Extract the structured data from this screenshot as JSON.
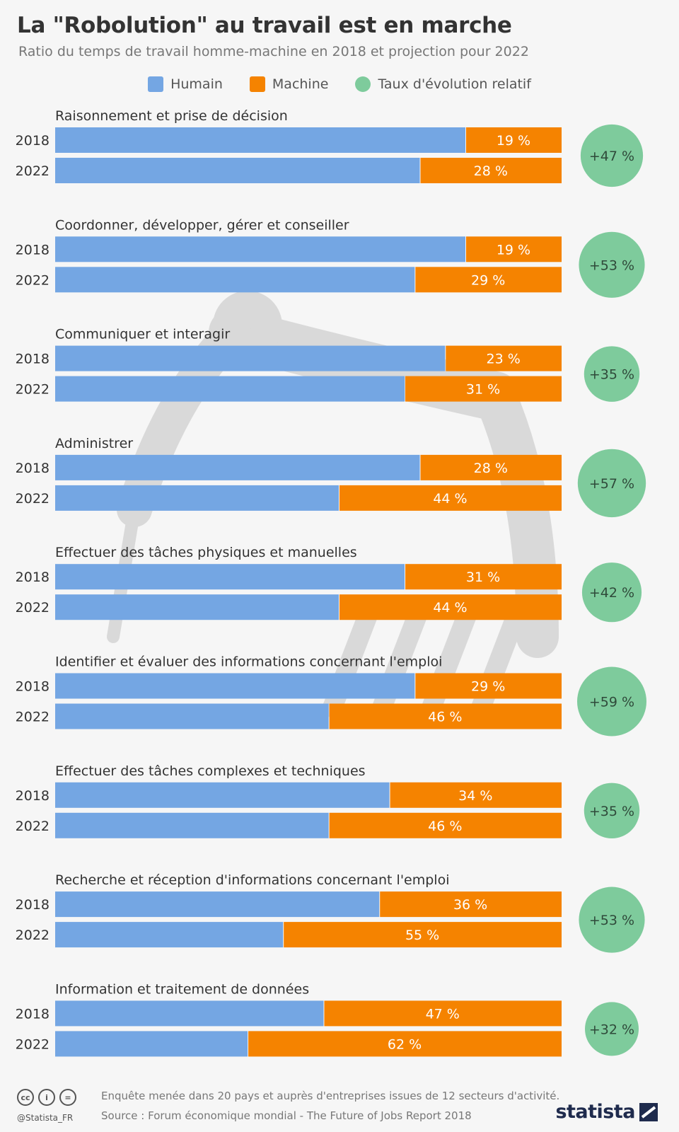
{
  "title": "La \"Robolution\" au travail est en marche",
  "subtitle": "Ratio du temps de travail homme-machine en 2018 et projection pour 2022",
  "legend": [
    {
      "label": "Humain",
      "color": "#74a6e3",
      "shape": "square"
    },
    {
      "label": "Machine",
      "color": "#f58300",
      "shape": "square"
    },
    {
      "label": "Taux d'évolution relatif",
      "color": "#7ecb9c",
      "shape": "circle"
    }
  ],
  "chart_data": {
    "type": "bar",
    "orientation": "horizontal",
    "stacked": true,
    "unit": "%",
    "xlim": [
      0,
      100
    ],
    "years": [
      "2018",
      "2022"
    ],
    "series": [
      {
        "name": "Humain",
        "color": "#74a6e3"
      },
      {
        "name": "Machine",
        "color": "#f58300"
      }
    ],
    "groups": [
      {
        "label": "Raisonnement et prise de décision",
        "machine": [
          19,
          28
        ],
        "growth": "+47 %"
      },
      {
        "label": "Coordonner, développer, gérer et conseiller",
        "machine": [
          19,
          29
        ],
        "growth": "+53 %"
      },
      {
        "label": "Communiquer et interagir",
        "machine": [
          23,
          31
        ],
        "growth": "+35 %"
      },
      {
        "label": "Administrer",
        "machine": [
          28,
          44
        ],
        "growth": "+57 %"
      },
      {
        "label": "Effectuer des tâches physiques et manuelles",
        "machine": [
          31,
          44
        ],
        "growth": "+42 %"
      },
      {
        "label": "Identifier et évaluer des informations concernant l'emploi",
        "machine": [
          29,
          46
        ],
        "growth": "+59 %"
      },
      {
        "label": "Effectuer des tâches complexes et techniques",
        "machine": [
          34,
          46
        ],
        "growth": "+35 %"
      },
      {
        "label": "Recherche et réception d'informations concernant l'emploi",
        "machine": [
          36,
          55
        ],
        "growth": "+53 %"
      },
      {
        "label": "Information et traitement de données",
        "machine": [
          47,
          62
        ],
        "growth": "+32 %"
      }
    ],
    "growth_color": "#7ecb9c"
  },
  "footer": {
    "handle": "@Statista_FR",
    "note": "Enquête menée dans 20 pays et auprès d'entreprises issues de 12 secteurs d'activité.",
    "source": "Source : Forum économique mondial - The Future of Jobs Report 2018",
    "brand": "statista"
  }
}
